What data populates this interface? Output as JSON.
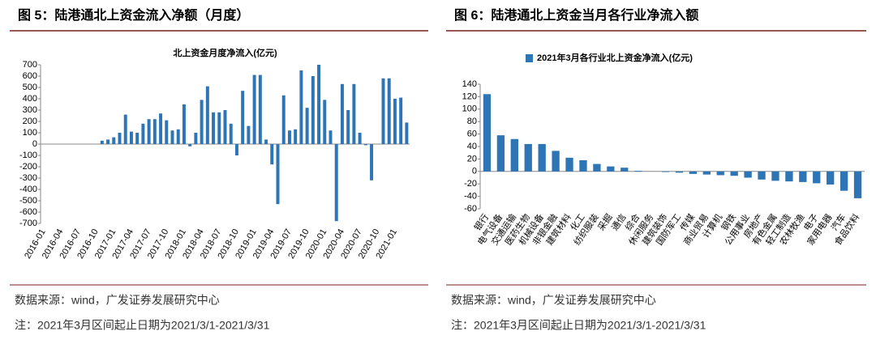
{
  "chart_data": [
    {
      "type": "bar",
      "caption": "图 5：陆港通北上资金流入净额（月度）",
      "title": "北上资金月度净流入(亿元)",
      "categories": [
        "2016-01",
        null,
        null,
        "2016-04",
        null,
        null,
        "2016-07",
        null,
        null,
        "2016-10",
        null,
        null,
        "2017-01",
        null,
        null,
        "2017-04",
        null,
        null,
        "2017-07",
        null,
        null,
        "2017-10",
        null,
        null,
        "2018-01",
        null,
        null,
        "2018-04",
        null,
        null,
        "2018-07",
        null,
        null,
        "2018-10",
        null,
        null,
        "2019-01",
        null,
        null,
        "2019-04",
        null,
        null,
        "2019-07",
        null,
        null,
        "2019-10",
        null,
        null,
        "2020-01",
        null,
        null,
        "2020-04",
        null,
        null,
        "2020-07",
        null,
        null,
        "2020-10",
        null,
        null,
        "2021-01",
        null,
        null
      ],
      "values": [
        0,
        0,
        0,
        0,
        0,
        0,
        0,
        0,
        0,
        0,
        30,
        40,
        60,
        100,
        260,
        110,
        100,
        180,
        220,
        220,
        270,
        210,
        120,
        130,
        350,
        -20,
        100,
        390,
        510,
        280,
        280,
        300,
        180,
        -100,
        470,
        160,
        610,
        610,
        40,
        -180,
        -530,
        430,
        120,
        130,
        650,
        320,
        600,
        700,
        390,
        120,
        -680,
        530,
        300,
        530,
        100,
        -10,
        -320,
        0,
        580,
        580,
        400,
        410,
        190
      ],
      "color": "#2e75b6",
      "ylim": [
        -700,
        700
      ],
      "yticks": [
        -700,
        -600,
        -500,
        -400,
        -300,
        -200,
        -100,
        0,
        100,
        200,
        300,
        400,
        500,
        600,
        700
      ],
      "source": "数据来源：wind，广发证券发展研究中心",
      "note": "注：2021年3月区间起止日期为2021/3/1-2021/3/31"
    },
    {
      "type": "bar",
      "caption": "图 6：陆港通北上资金当月各行业净流入额",
      "categories": [
        "银行",
        "电气设备",
        "交通运输",
        "医药生物",
        "机械设备",
        "非银金融",
        "建筑材料",
        "化工",
        "纺织服装",
        "采掘",
        "通信",
        "综合",
        "休闲服务",
        "建筑装饰",
        "国防军工",
        "传媒",
        "商业贸易",
        "计算机",
        "钢铁",
        "公用事业",
        "房地产",
        "有色金属",
        "轻工制造",
        "农林牧渔",
        "电子",
        "家用电器",
        "汽车",
        "食品饮料"
      ],
      "series": [
        {
          "name": "2021年3月各行业北上资金净流入(亿元)",
          "color": "#2e75b6",
          "values": [
            124,
            58,
            52,
            44,
            44,
            33,
            22,
            18,
            12,
            8,
            6,
            1,
            0,
            -1,
            -2,
            -4,
            -5,
            -6,
            -7,
            -10,
            -13,
            -15,
            -16,
            -17,
            -19,
            -21,
            -31,
            -43
          ]
        }
      ],
      "ylim": [
        -60,
        140
      ],
      "yticks": [
        -60,
        -40,
        -20,
        0,
        20,
        40,
        60,
        80,
        100,
        120,
        140
      ],
      "source": "数据来源：wind，广发证券发展研究中心",
      "note": "注：2021年3月区间起止日期为2021/3/1-2021/3/31"
    }
  ]
}
